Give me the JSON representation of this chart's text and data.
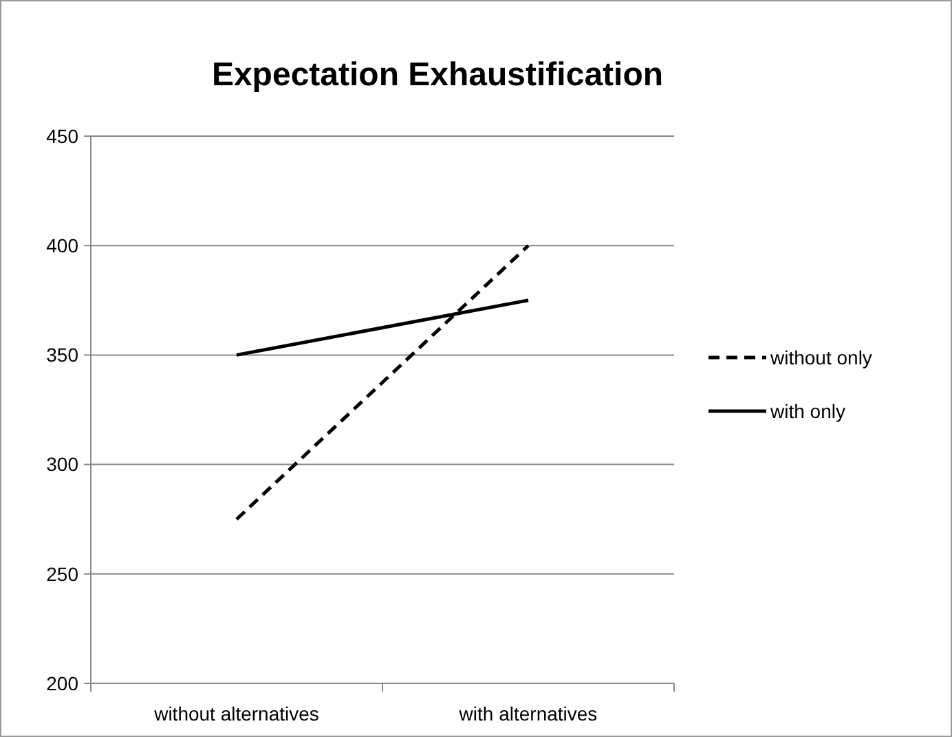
{
  "chart_data": {
    "type": "line",
    "title": "Expectation Exhaustification",
    "categories": [
      "without alternatives",
      "with alternatives"
    ],
    "series": [
      {
        "name": "without only",
        "color": "#000000",
        "values": [
          275,
          400
        ],
        "line_style": "dashed"
      },
      {
        "name": "with only",
        "color": "#000000",
        "values": [
          350,
          375
        ],
        "line_style": "solid"
      }
    ],
    "ylim": [
      200,
      450
    ],
    "yticks": [
      200,
      250,
      300,
      350,
      400,
      450
    ],
    "grid": "y",
    "legend": "right",
    "marker": "none"
  }
}
